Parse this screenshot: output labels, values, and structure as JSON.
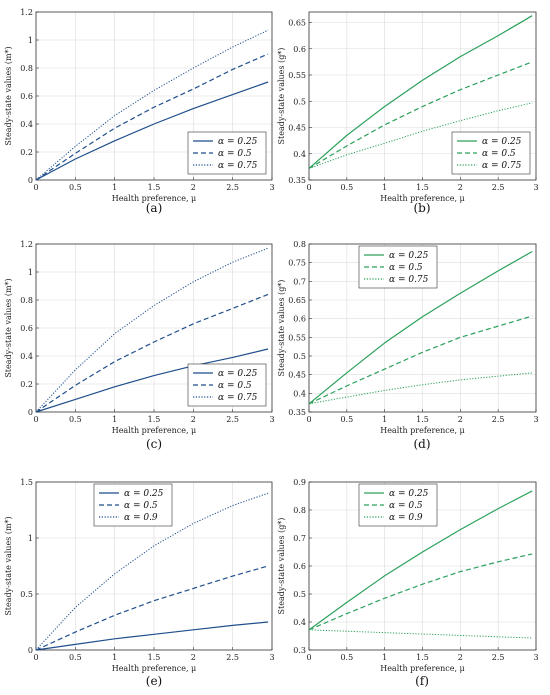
{
  "colors": {
    "blue": "#1f4e8c",
    "green": "#2aa05a",
    "grid": "#dcdcdc",
    "axis": "#333333"
  },
  "chart_data": [
    {
      "panel": "(a)",
      "type": "line",
      "xlabel": "Health preference, μ",
      "ylabel": "Steady-state values (m*)",
      "xlim": [
        0,
        3
      ],
      "ylim": [
        0,
        1.2
      ],
      "xticks": [
        "0",
        "0.5",
        "1",
        "1.5",
        "2",
        "2.5",
        "3"
      ],
      "yticks": [
        "0",
        "0.2",
        "0.4",
        "0.6",
        "0.8",
        "1",
        "1.2"
      ],
      "grid": true,
      "legend": "bottom-right",
      "color": "blue",
      "x": [
        0,
        0.5,
        1,
        1.5,
        2,
        2.5,
        2.95
      ],
      "series": [
        {
          "name": "α = 0.25",
          "style": "solid",
          "values": [
            0,
            0.15,
            0.28,
            0.4,
            0.51,
            0.61,
            0.7
          ]
        },
        {
          "name": "α = 0.5",
          "style": "dashed",
          "values": [
            0,
            0.19,
            0.37,
            0.52,
            0.65,
            0.79,
            0.9
          ]
        },
        {
          "name": "α = 0.75",
          "style": "dotted",
          "values": [
            0,
            0.24,
            0.46,
            0.64,
            0.8,
            0.95,
            1.07
          ]
        }
      ]
    },
    {
      "panel": "(b)",
      "type": "line",
      "xlabel": "Health preference, μ",
      "ylabel": "Steady-state values (g*)",
      "xlim": [
        0,
        3
      ],
      "ylim": [
        0.35,
        0.67
      ],
      "xticks": [
        "0",
        "0.5",
        "1",
        "1.5",
        "2",
        "2.5",
        "3"
      ],
      "yticks": [
        "0.35",
        "0.4",
        "0.45",
        "0.5",
        "0.55",
        "0.6",
        "0.65"
      ],
      "grid": true,
      "legend": "bottom-right",
      "color": "green",
      "x": [
        0,
        0.5,
        1,
        1.5,
        2,
        2.5,
        2.95
      ],
      "series": [
        {
          "name": "α = 0.25",
          "style": "solid",
          "values": [
            0.372,
            0.435,
            0.49,
            0.54,
            0.585,
            0.625,
            0.663
          ]
        },
        {
          "name": "α = 0.5",
          "style": "dashed",
          "values": [
            0.372,
            0.415,
            0.455,
            0.49,
            0.522,
            0.55,
            0.575
          ]
        },
        {
          "name": "α = 0.75",
          "style": "dotted",
          "values": [
            0.372,
            0.398,
            0.42,
            0.443,
            0.463,
            0.482,
            0.497
          ]
        }
      ]
    },
    {
      "panel": "(c)",
      "type": "line",
      "xlabel": "Health preference, μ",
      "ylabel": "Steady-state values (m*)",
      "xlim": [
        0,
        3
      ],
      "ylim": [
        0,
        1.2
      ],
      "xticks": [
        "0",
        "0.5",
        "1",
        "1.5",
        "2",
        "2.5",
        "3"
      ],
      "yticks": [
        "0",
        "0.2",
        "0.4",
        "0.6",
        "0.8",
        "1",
        "1.2"
      ],
      "grid": true,
      "legend": "bottom-right",
      "color": "blue",
      "x": [
        0,
        0.5,
        1,
        1.5,
        2,
        2.5,
        2.95
      ],
      "series": [
        {
          "name": "α = 0.25",
          "style": "solid",
          "values": [
            0,
            0.09,
            0.18,
            0.26,
            0.33,
            0.39,
            0.45
          ]
        },
        {
          "name": "α = 0.5",
          "style": "dashed",
          "values": [
            0,
            0.19,
            0.36,
            0.5,
            0.63,
            0.74,
            0.84
          ]
        },
        {
          "name": "α = 0.75",
          "style": "dotted",
          "values": [
            0,
            0.3,
            0.56,
            0.76,
            0.93,
            1.07,
            1.17
          ]
        }
      ]
    },
    {
      "panel": "(d)",
      "type": "line",
      "xlabel": "Health preference, μ",
      "ylabel": "Steady-state values (g*)",
      "xlim": [
        0,
        3
      ],
      "ylim": [
        0.35,
        0.8
      ],
      "xticks": [
        "0",
        "0.5",
        "1",
        "1.5",
        "2",
        "2.5",
        "3"
      ],
      "yticks": [
        "0.35",
        "0.4",
        "0.45",
        "0.5",
        "0.55",
        "0.6",
        "0.65",
        "0.7",
        "0.75",
        "0.8"
      ],
      "grid": true,
      "legend": "top-left",
      "color": "green",
      "x": [
        0,
        0.5,
        1,
        1.5,
        2,
        2.5,
        2.95
      ],
      "series": [
        {
          "name": "α = 0.25",
          "style": "solid",
          "values": [
            0.372,
            0.455,
            0.535,
            0.605,
            0.668,
            0.728,
            0.78
          ]
        },
        {
          "name": "α = 0.5",
          "style": "dashed",
          "values": [
            0.372,
            0.42,
            0.465,
            0.51,
            0.55,
            0.58,
            0.607
          ]
        },
        {
          "name": "α = 0.75",
          "style": "dotted",
          "values": [
            0.372,
            0.39,
            0.408,
            0.423,
            0.436,
            0.446,
            0.455
          ]
        }
      ]
    },
    {
      "panel": "(e)",
      "type": "line",
      "xlabel": "Health preference, μ",
      "ylabel": "Steady-state values (m*)",
      "xlim": [
        0,
        3
      ],
      "ylim": [
        0,
        1.5
      ],
      "xticks": [
        "0",
        "0.5",
        "1",
        "1.5",
        "2",
        "2.5",
        "3"
      ],
      "yticks": [
        "0",
        "0.5",
        "1",
        "1.5"
      ],
      "grid": true,
      "legend": "top-left",
      "color": "blue",
      "x": [
        0,
        0.5,
        1,
        1.5,
        2,
        2.5,
        2.95
      ],
      "series": [
        {
          "name": "α = 0.25",
          "style": "solid",
          "values": [
            0,
            0.05,
            0.1,
            0.14,
            0.18,
            0.22,
            0.25
          ]
        },
        {
          "name": "α = 0.5",
          "style": "dashed",
          "values": [
            0,
            0.16,
            0.31,
            0.44,
            0.55,
            0.66,
            0.75
          ]
        },
        {
          "name": "α = 0.9",
          "style": "dotted",
          "values": [
            0,
            0.38,
            0.68,
            0.93,
            1.13,
            1.29,
            1.4
          ]
        }
      ]
    },
    {
      "panel": "(f)",
      "type": "line",
      "xlabel": "Health preference, μ",
      "ylabel": "Steady-state values (g*)",
      "xlim": [
        0,
        3
      ],
      "ylim": [
        0.3,
        0.9
      ],
      "xticks": [
        "0",
        "0.5",
        "1",
        "1.5",
        "2",
        "2.5",
        "3"
      ],
      "yticks": [
        "0.3",
        "0.4",
        "0.5",
        "0.6",
        "0.7",
        "0.8",
        "0.9"
      ],
      "grid": true,
      "legend": "top-left",
      "color": "green",
      "x": [
        0,
        0.5,
        1,
        1.5,
        2,
        2.5,
        2.95
      ],
      "series": [
        {
          "name": "α = 0.25",
          "style": "solid",
          "values": [
            0.372,
            0.47,
            0.565,
            0.65,
            0.73,
            0.805,
            0.868
          ]
        },
        {
          "name": "α = 0.5",
          "style": "dashed",
          "values": [
            0.372,
            0.43,
            0.485,
            0.535,
            0.58,
            0.615,
            0.643
          ]
        },
        {
          "name": "α = 0.9",
          "style": "dotted",
          "values": [
            0.372,
            0.367,
            0.362,
            0.357,
            0.352,
            0.347,
            0.343
          ]
        }
      ]
    }
  ]
}
